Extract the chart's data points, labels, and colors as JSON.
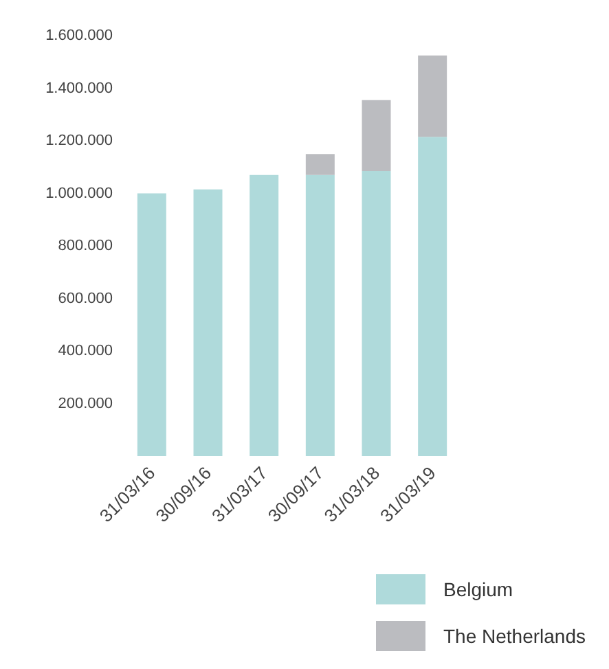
{
  "chart_data": {
    "type": "bar",
    "stacked": true,
    "categories": [
      "31/03/16",
      "30/09/16",
      "31/03/17",
      "30/09/17",
      "31/03/18",
      "31/03/19"
    ],
    "series": [
      {
        "name": "Belgium",
        "color": "#afdadb",
        "values": [
          1000000,
          1015000,
          1070000,
          1070000,
          1085000,
          1215000
        ]
      },
      {
        "name": "The Netherlands",
        "color": "#bbbcc0",
        "values": [
          0,
          0,
          0,
          80000,
          270000,
          310000
        ]
      }
    ],
    "ylim": [
      0,
      1600000
    ],
    "yticks": [
      {
        "value": 200000,
        "label": "200.000"
      },
      {
        "value": 400000,
        "label": "400.000"
      },
      {
        "value": 600000,
        "label": "600.000"
      },
      {
        "value": 800000,
        "label": "800.000"
      },
      {
        "value": 1000000,
        "label": "1.000.000"
      },
      {
        "value": 1200000,
        "label": "1.200.000"
      },
      {
        "value": 1400000,
        "label": "1.400.000"
      },
      {
        "value": 1600000,
        "label": "1.600.000"
      }
    ],
    "grid": false,
    "legend": "bottom right"
  }
}
